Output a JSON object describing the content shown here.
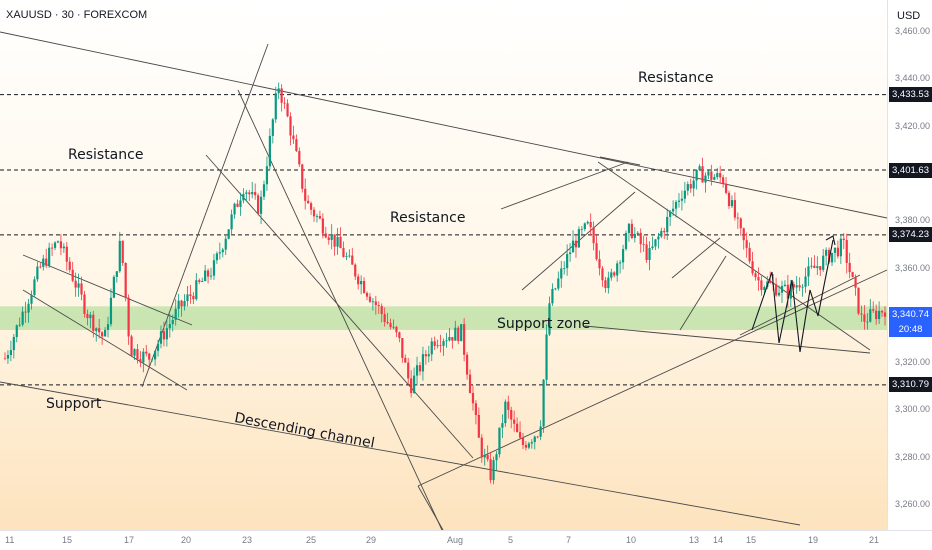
{
  "header": {
    "symbol_title": "XAUUSD · 30 · FOREXCOM",
    "currency": "USD"
  },
  "chart_data": {
    "type": "candlestick",
    "symbol": "XAUUSD",
    "timeframe": "30",
    "broker": "FOREXCOM",
    "y_axis": {
      "ticks": [
        3260,
        3280,
        3300,
        3320,
        3340,
        3360,
        3380,
        3400,
        3420,
        3440,
        3460
      ],
      "tick_labels": [
        "3,260.00",
        "3,280.00",
        "3,300.00",
        "3,320.00",
        "3,340.00",
        "3,360.00",
        "3,380.00",
        "3,400.00",
        "3,420.00",
        "3,440.00",
        "3,460.00"
      ],
      "range": [
        3252,
        3465
      ]
    },
    "x_axis": {
      "tick_labels": [
        "11",
        "15",
        "17",
        "20",
        "23",
        "25",
        "29",
        "Aug",
        "5",
        "7",
        "10",
        "13",
        "14",
        "15",
        "19",
        "21"
      ]
    },
    "levels": [
      {
        "price": 3433.53,
        "label": "3,433.53"
      },
      {
        "price": 3401.63,
        "label": "3,401.63"
      },
      {
        "price": 3374.23,
        "label": "3,374.23"
      },
      {
        "price": 3310.79,
        "label": "3,310.79"
      }
    ],
    "current_price": {
      "price": 3340.74,
      "label": "3,340.74",
      "countdown": "20:48"
    },
    "support_zone": [
      3334,
      3344
    ],
    "price_path": [
      {
        "x": 0.0,
        "y": 3322
      },
      {
        "x": 1.5,
        "y": 3360
      },
      {
        "x": 2.3,
        "y": 3372
      },
      {
        "x": 3.6,
        "y": 3340
      },
      {
        "x": 4.3,
        "y": 3330
      },
      {
        "x": 5.0,
        "y": 3372
      },
      {
        "x": 5.4,
        "y": 3326
      },
      {
        "x": 6.2,
        "y": 3322
      },
      {
        "x": 7.5,
        "y": 3343
      },
      {
        "x": 9.0,
        "y": 3360
      },
      {
        "x": 10.3,
        "y": 3395
      },
      {
        "x": 11.0,
        "y": 3385
      },
      {
        "x": 11.8,
        "y": 3438
      },
      {
        "x": 12.3,
        "y": 3420
      },
      {
        "x": 13.0,
        "y": 3388
      },
      {
        "x": 14.5,
        "y": 3368
      },
      {
        "x": 15.8,
        "y": 3348
      },
      {
        "x": 17.0,
        "y": 3330
      },
      {
        "x": 17.5,
        "y": 3310
      },
      {
        "x": 18.5,
        "y": 3330
      },
      {
        "x": 19.7,
        "y": 3333
      },
      {
        "x": 20.5,
        "y": 3285
      },
      {
        "x": 21.0,
        "y": 3272
      },
      {
        "x": 21.6,
        "y": 3302
      },
      {
        "x": 22.3,
        "y": 3285
      },
      {
        "x": 23.1,
        "y": 3292
      },
      {
        "x": 23.5,
        "y": 3345
      },
      {
        "x": 24.5,
        "y": 3370
      },
      {
        "x": 25.2,
        "y": 3378
      },
      {
        "x": 26.0,
        "y": 3352
      },
      {
        "x": 27.0,
        "y": 3377
      },
      {
        "x": 27.8,
        "y": 3365
      },
      {
        "x": 29.2,
        "y": 3392
      },
      {
        "x": 30.0,
        "y": 3400
      },
      {
        "x": 31.0,
        "y": 3398
      },
      {
        "x": 31.7,
        "y": 3376
      },
      {
        "x": 32.5,
        "y": 3355
      },
      {
        "x": 33.8,
        "y": 3350
      },
      {
        "x": 35.5,
        "y": 3365
      },
      {
        "x": 36.2,
        "y": 3370
      },
      {
        "x": 37.0,
        "y": 3338
      },
      {
        "x": 38.0,
        "y": 3343
      }
    ],
    "annotations": [
      {
        "text": "Resistance"
      },
      {
        "text": "Resistance"
      },
      {
        "text": "Resistance"
      },
      {
        "text": "Support"
      },
      {
        "text": "Descending channel"
      },
      {
        "text": "Support zone"
      }
    ],
    "projection": "zigzag then breakout upward",
    "colors": {
      "up": "#089981",
      "down": "#f23645",
      "zone": "#b8e0a2",
      "line": "#4a4a4a",
      "level_tag": "#131722",
      "price_tag": "#2962ff"
    }
  }
}
